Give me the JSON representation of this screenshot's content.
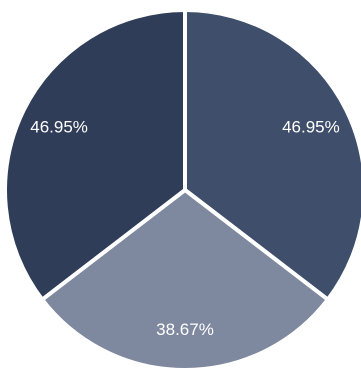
{
  "chart_data": {
    "type": "pie",
    "title": "",
    "labels": [
      "46.95%",
      "46.95%",
      "38.67%"
    ],
    "values": [
      46.95,
      46.95,
      38.67
    ],
    "colors": [
      "#3f4f6b",
      "#2f3d58",
      "#7e889e"
    ],
    "legend": "none"
  }
}
